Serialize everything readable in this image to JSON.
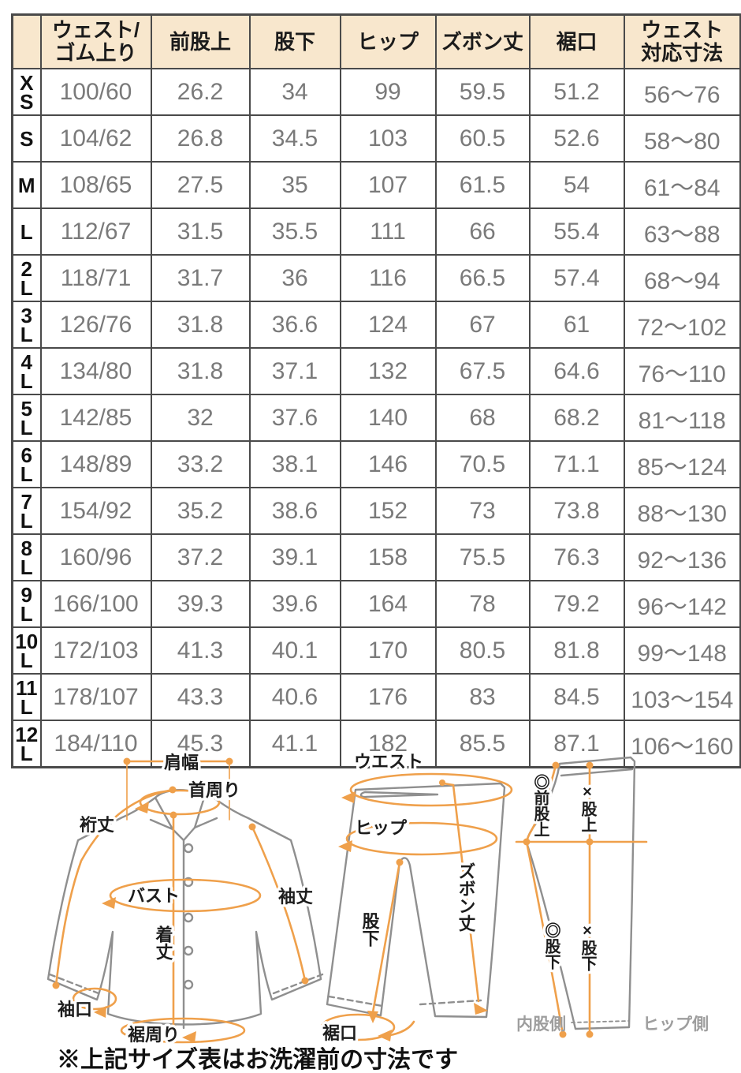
{
  "colors": {
    "accent_orange": "#efa04b",
    "header_bg": "#f8e7cd",
    "border": "#4a4a4a",
    "value_text": "#7a7a7a"
  },
  "table": {
    "headers": [
      [
        ""
      ],
      [
        "ウェスト/",
        "ゴム上り"
      ],
      [
        "前股上"
      ],
      [
        "股下"
      ],
      [
        "ヒップ"
      ],
      [
        "ズボン丈"
      ],
      [
        "裾口"
      ],
      [
        "ウェスト",
        "対応寸法"
      ]
    ],
    "rows": [
      {
        "size": [
          "X",
          "S"
        ],
        "values": [
          "100/60",
          "26.2",
          "34",
          "99",
          "59.5",
          "51.2",
          "56〜76"
        ]
      },
      {
        "size": [
          "S"
        ],
        "values": [
          "104/62",
          "26.8",
          "34.5",
          "103",
          "60.5",
          "52.6",
          "58〜80"
        ]
      },
      {
        "size": [
          "M"
        ],
        "values": [
          "108/65",
          "27.5",
          "35",
          "107",
          "61.5",
          "54",
          "61〜84"
        ]
      },
      {
        "size": [
          "L"
        ],
        "values": [
          "112/67",
          "31.5",
          "35.5",
          "111",
          "66",
          "55.4",
          "63〜88"
        ]
      },
      {
        "size": [
          "2",
          "L"
        ],
        "values": [
          "118/71",
          "31.7",
          "36",
          "116",
          "66.5",
          "57.4",
          "68〜94"
        ]
      },
      {
        "size": [
          "3",
          "L"
        ],
        "values": [
          "126/76",
          "31.8",
          "36.6",
          "124",
          "67",
          "61",
          "72〜102"
        ]
      },
      {
        "size": [
          "4",
          "L"
        ],
        "values": [
          "134/80",
          "31.8",
          "37.1",
          "132",
          "67.5",
          "64.6",
          "76〜110"
        ]
      },
      {
        "size": [
          "5",
          "L"
        ],
        "values": [
          "142/85",
          "32",
          "37.6",
          "140",
          "68",
          "68.2",
          "81〜118"
        ]
      },
      {
        "size": [
          "6",
          "L"
        ],
        "values": [
          "148/89",
          "33.2",
          "38.1",
          "146",
          "70.5",
          "71.1",
          "85〜124"
        ]
      },
      {
        "size": [
          "7",
          "L"
        ],
        "values": [
          "154/92",
          "35.2",
          "38.6",
          "152",
          "73",
          "73.8",
          "88〜130"
        ]
      },
      {
        "size": [
          "8",
          "L"
        ],
        "values": [
          "160/96",
          "37.2",
          "39.1",
          "158",
          "75.5",
          "76.3",
          "92〜136"
        ]
      },
      {
        "size": [
          "9",
          "L"
        ],
        "values": [
          "166/100",
          "39.3",
          "39.6",
          "164",
          "78",
          "79.2",
          "96〜142"
        ]
      },
      {
        "size": [
          "10",
          "L"
        ],
        "values": [
          "172/103",
          "41.3",
          "40.1",
          "170",
          "80.5",
          "81.8",
          "99〜148"
        ]
      },
      {
        "size": [
          "11",
          "L"
        ],
        "values": [
          "178/107",
          "43.3",
          "40.6",
          "176",
          "83",
          "84.5",
          "103〜154"
        ]
      },
      {
        "size": [
          "12",
          "L"
        ],
        "values": [
          "184/110",
          "45.3",
          "41.1",
          "182",
          "85.5",
          "87.1",
          "106〜160"
        ]
      }
    ]
  },
  "diagrams": {
    "shirt": {
      "shoulder_width": "肩幅",
      "neck_girth": "首周り",
      "yuki_length": "裄丈",
      "bust": "バスト",
      "sleeve_length": "袖丈",
      "body_length": "着丈",
      "cuff_opening": "袖口",
      "hem_girth": "裾周り"
    },
    "pants_front": {
      "waist": "ウエスト",
      "hip": "ヒップ",
      "pants_length": "ズボン丈",
      "inseam": "股下",
      "hem_opening": "裾口"
    },
    "pants_side": {
      "front_rise": "◎前股上",
      "rise": "×股上",
      "inseam_inner": "◎股下",
      "inseam_outer": "×股下",
      "inner_leg_side": "内股側",
      "hip_side": "ヒップ側"
    }
  },
  "note": "※上記サイズ表はお洗濯前の寸法です"
}
